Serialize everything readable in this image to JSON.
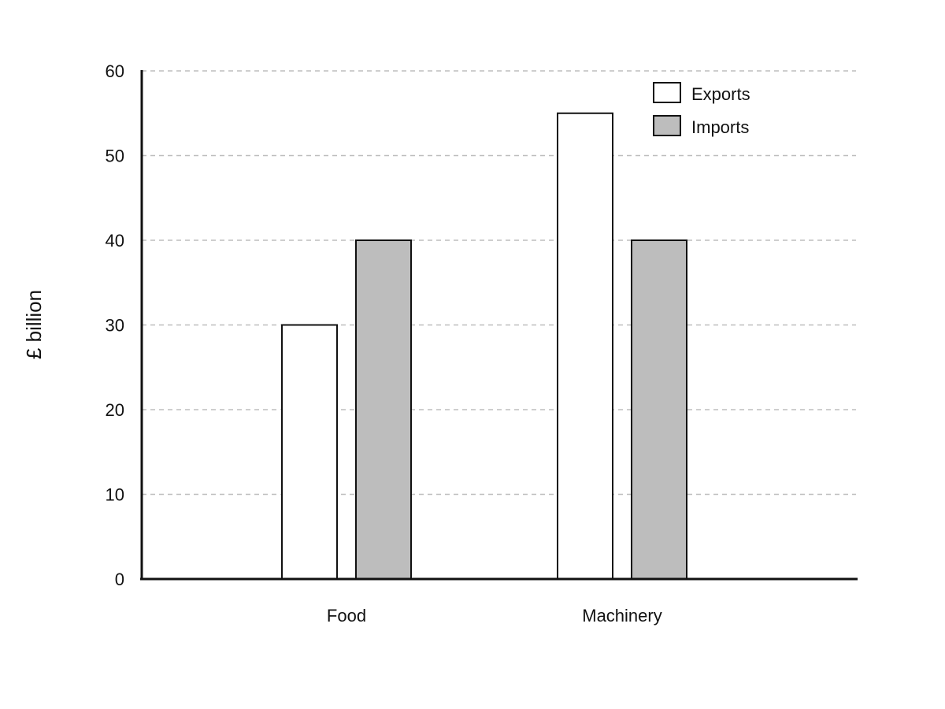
{
  "chart_data": {
    "type": "bar",
    "title": "",
    "xlabel": "",
    "ylabel": "£ billion",
    "ylim": [
      0,
      60
    ],
    "yticks": [
      0,
      10,
      20,
      30,
      40,
      50,
      60
    ],
    "grid": true,
    "grid_style": "dashed horizontal",
    "legend_position": "top-right",
    "categories": [
      "Food",
      "Machinery"
    ],
    "series": [
      {
        "name": "Exports",
        "values": [
          30,
          55
        ],
        "color": "#ffffff"
      },
      {
        "name": "Imports",
        "values": [
          40,
          40
        ],
        "color": "#bdbdbd"
      }
    ],
    "colors": {
      "stroke": "#111111",
      "gridline": "#bdbdbd"
    }
  }
}
